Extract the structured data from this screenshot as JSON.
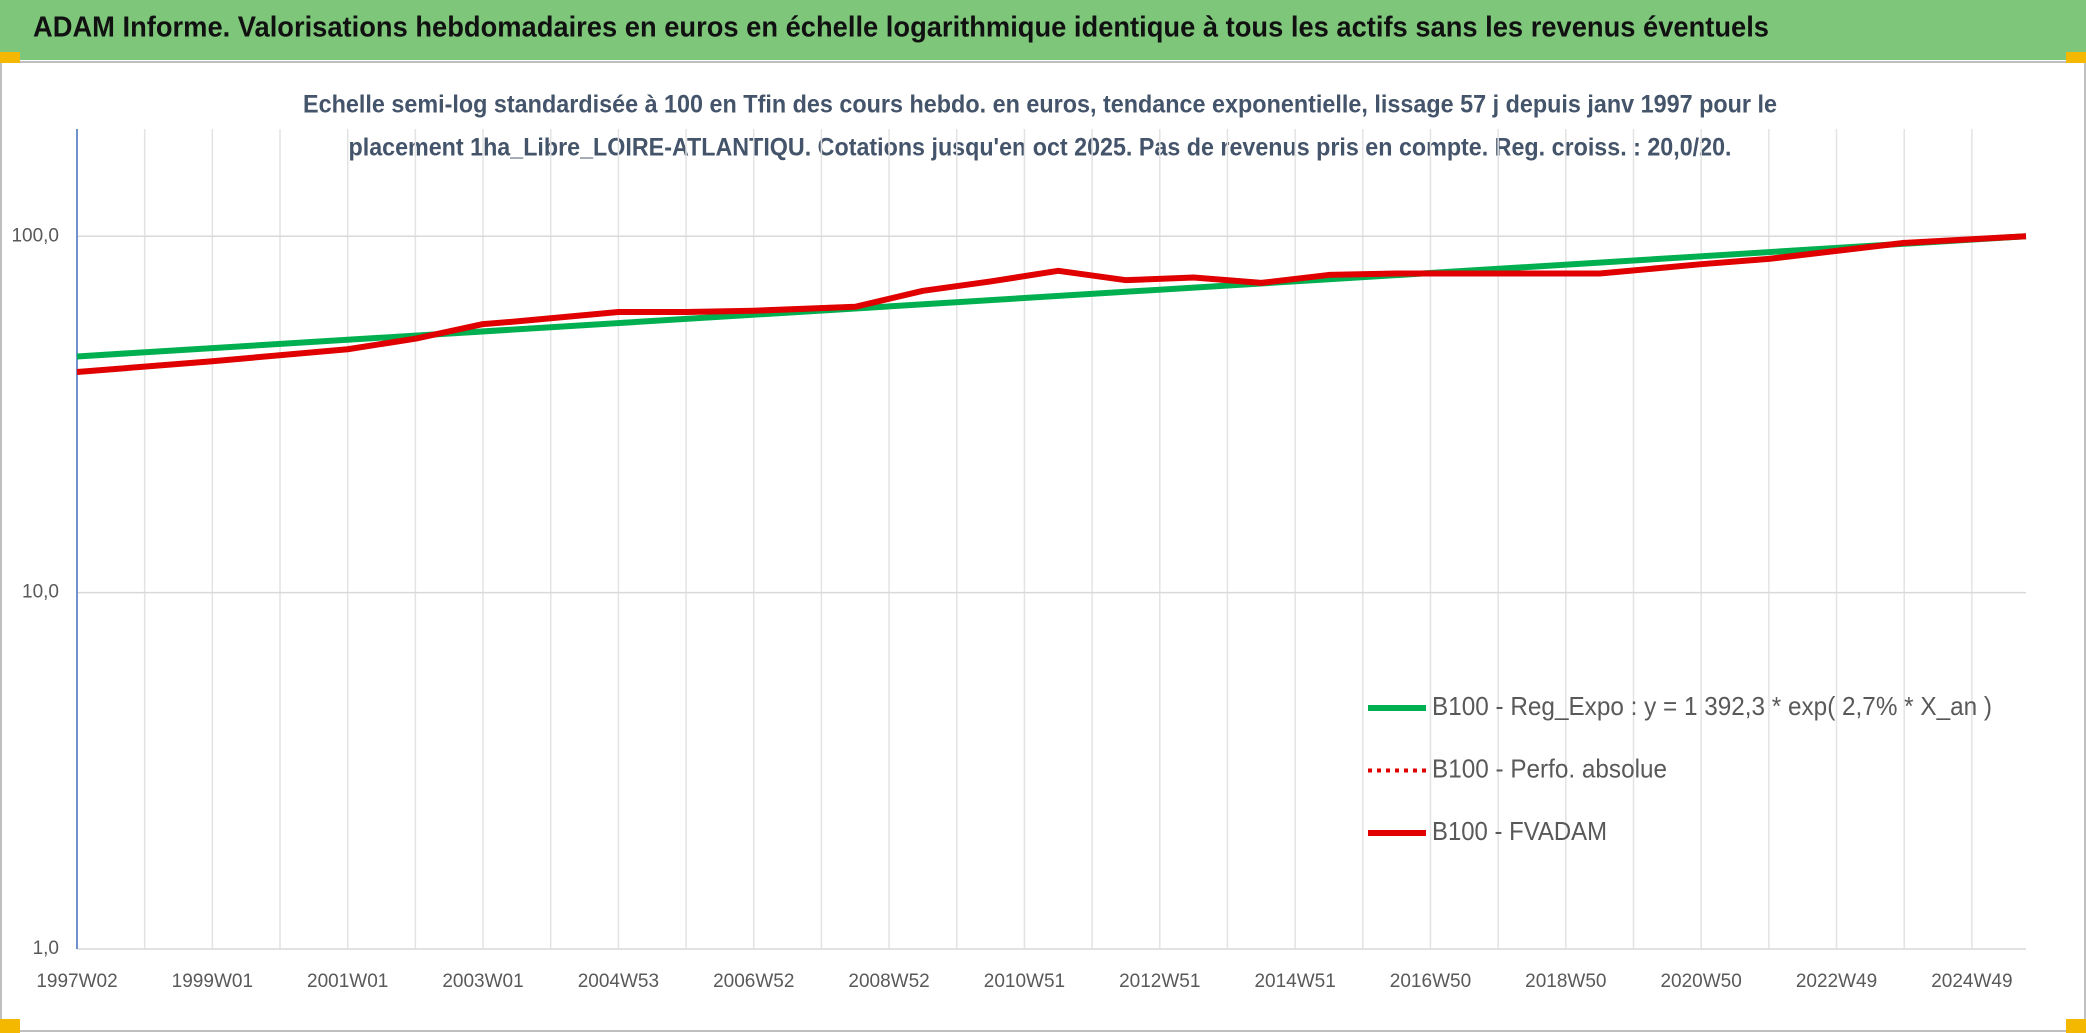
{
  "header": {
    "title": "ADAM Informe. Valorisations hebdomadaires en euros en échelle logarithmique identique à tous les actifs sans les revenus éventuels"
  },
  "chart_data": {
    "type": "line",
    "subtitle": [
      "Echelle semi-log standardisée à 100 en Tfin des cours hebdo. en euros, tendance exponentielle, lissage 57 j depuis janv 1997 pour le",
      "placement 1ha_Libre_LOIRE-ATLANTIQU. Cotations jusqu'en oct 2025. Pas de revenus pris en compte. Reg. croiss. : 20,0/20."
    ],
    "log_y": true,
    "grid": true,
    "legend": "right",
    "xlim": [
      1997,
      2025.8
    ],
    "xticks": [
      {
        "value": 1997,
        "label": "1997W02"
      },
      {
        "value": 1999,
        "label": "1999W01"
      },
      {
        "value": 2001,
        "label": "2001W01"
      },
      {
        "value": 2003,
        "label": "2003W01"
      },
      {
        "value": 2005,
        "label": "2004W53"
      },
      {
        "value": 2007,
        "label": "2006W52"
      },
      {
        "value": 2009,
        "label": "2008W52"
      },
      {
        "value": 2011,
        "label": "2010W51"
      },
      {
        "value": 2013,
        "label": "2012W51"
      },
      {
        "value": 2015,
        "label": "2014W51"
      },
      {
        "value": 2017,
        "label": "2016W50"
      },
      {
        "value": 2019,
        "label": "2018W50"
      },
      {
        "value": 2021,
        "label": "2020W50"
      },
      {
        "value": 2023,
        "label": "2022W49"
      },
      {
        "value": 2025,
        "label": "2024W49"
      }
    ],
    "ylim": [
      1,
      200
    ],
    "yticks": [
      {
        "value": 1,
        "label": "1,0"
      },
      {
        "value": 10,
        "label": "10,0"
      },
      {
        "value": 100,
        "label": "100,0"
      }
    ],
    "series": [
      {
        "name": "B100 - Reg_Expo : y = 1 392,3 * exp( 2,7% *  X_an )",
        "color": "#00b050",
        "style": "solid",
        "x": [
          1997,
          2025.8
        ],
        "values": [
          46,
          100
        ]
      },
      {
        "name": "B100 - Perfo. absolue",
        "color": "#e00000",
        "style": "dotted",
        "x": [
          1997,
          1999,
          2001,
          2002,
          2003,
          2003.5,
          2005,
          2006,
          2007,
          2008.5,
          2009.5,
          2010.5,
          2011.5,
          2012.5,
          2013.5,
          2014.5,
          2015.5,
          2016.5,
          2019.5,
          2021,
          2022,
          2023,
          2024,
          2025.8
        ],
        "values": [
          41.6,
          44.6,
          48.2,
          51.6,
          56.7,
          57.7,
          61.3,
          61.3,
          61.8,
          63.4,
          70.3,
          74.7,
          80.0,
          75.3,
          76.6,
          74.0,
          77.9,
          78.6,
          78.6,
          83.5,
          86.4,
          91.0,
          95.8,
          100
        ]
      },
      {
        "name": "B100 - FVADAM",
        "color": "#e00000",
        "style": "solid",
        "x": [
          1997,
          1999,
          2001,
          2002,
          2003,
          2003.5,
          2005,
          2006,
          2007,
          2008.5,
          2009.5,
          2010.5,
          2011.5,
          2012.5,
          2013.5,
          2014.5,
          2015.5,
          2016.5,
          2019.5,
          2021,
          2022,
          2023,
          2024,
          2025.8
        ],
        "values": [
          41.6,
          44.6,
          48.2,
          51.6,
          56.7,
          57.7,
          61.3,
          61.3,
          61.8,
          63.4,
          70.3,
          74.7,
          80.0,
          75.3,
          76.6,
          74.0,
          77.9,
          78.6,
          78.6,
          83.5,
          86.4,
          91.0,
          95.8,
          100
        ]
      }
    ]
  }
}
